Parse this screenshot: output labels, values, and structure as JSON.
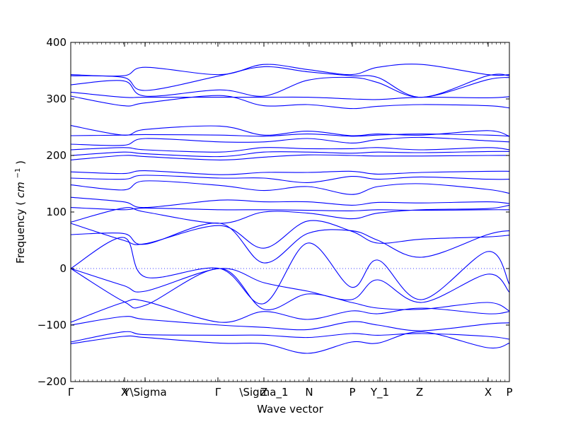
{
  "chart_data": {
    "type": "line",
    "title": "",
    "xlabel": "Wave vector",
    "ylabel": "Frequency",
    "ylabel_unit": "cm",
    "ylabel_unit_exp": "−1",
    "ylim": [
      -200,
      400
    ],
    "yticks": [
      -200,
      -100,
      0,
      100,
      200,
      300,
      400
    ],
    "ytick_labels": [
      "−200",
      "−100",
      "0",
      "100",
      "200",
      "300",
      "400"
    ],
    "xlim": [
      0,
      1
    ],
    "high_symmetry_points": [
      {
        "label": "Γ",
        "x": 0.0
      },
      {
        "label": "X",
        "x": 0.1226
      },
      {
        "label": "Y\\Sigma",
        "x": 0.1694
      },
      {
        "label": "Γ",
        "x": 0.3355
      },
      {
        "label": "Z",
        "x": 0.4403
      },
      {
        "label": "\\Sigma_1",
        "x": 0.4403
      },
      {
        "label": "N",
        "x": 0.5435
      },
      {
        "label": "P",
        "x": 0.6419
      },
      {
        "label": "Y_1",
        "x": 0.7048
      },
      {
        "label": "Z",
        "x": 0.7952
      },
      {
        "label": "X",
        "x": 0.9516
      },
      {
        "label": "P",
        "x": 1.0
      }
    ],
    "zero_line": {
      "y": 0,
      "style": "dotted"
    },
    "line_color": "#0000ff",
    "series": [
      {
        "x": [
          0,
          0.12,
          0.17,
          0.34,
          0.44,
          0.54,
          0.64,
          0.7,
          0.8,
          0.95,
          1.0
        ],
        "values": [
          343,
          341,
          356,
          343,
          361,
          352,
          343,
          356,
          361,
          343,
          343
        ]
      },
      {
        "x": [
          0,
          0.12,
          0.17,
          0.34,
          0.44,
          0.54,
          0.64,
          0.7,
          0.8,
          0.95,
          1.0
        ],
        "values": [
          341,
          338,
          315,
          341,
          357,
          348,
          341,
          338,
          303,
          341,
          341
        ]
      },
      {
        "x": [
          0,
          0.12,
          0.17,
          0.34,
          0.44,
          0.54,
          0.64,
          0.7,
          0.8,
          0.95,
          1.0
        ],
        "values": [
          325,
          332,
          305,
          316,
          305,
          333,
          338,
          329,
          303,
          334,
          338
        ]
      },
      {
        "x": [
          0,
          0.12,
          0.17,
          0.34,
          0.44,
          0.54,
          0.64,
          0.7,
          0.8,
          0.95,
          1.0
        ],
        "values": [
          312,
          303,
          303,
          303,
          303,
          303,
          300,
          299,
          303,
          302,
          304
        ]
      },
      {
        "x": [
          0,
          0.12,
          0.17,
          0.34,
          0.44,
          0.54,
          0.64,
          0.7,
          0.8,
          0.95,
          1.0
        ],
        "values": [
          305,
          288,
          293,
          306,
          288,
          290,
          283,
          287,
          290,
          288,
          284
        ]
      },
      {
        "x": [
          0,
          0.12,
          0.17,
          0.34,
          0.44,
          0.54,
          0.64,
          0.7,
          0.8,
          0.95,
          1.0
        ],
        "values": [
          253,
          236,
          246,
          252,
          236,
          243,
          235,
          238,
          236,
          244,
          234
        ]
      },
      {
        "x": [
          0,
          0.12,
          0.17,
          0.34,
          0.44,
          0.54,
          0.64,
          0.7,
          0.8,
          0.95,
          1.0
        ],
        "values": [
          235,
          236,
          237,
          236,
          234,
          238,
          234,
          236,
          238,
          236,
          234
        ]
      },
      {
        "x": [
          0,
          0.12,
          0.17,
          0.34,
          0.44,
          0.54,
          0.64,
          0.7,
          0.8,
          0.95,
          1.0
        ],
        "values": [
          220,
          218,
          230,
          224,
          224,
          230,
          222,
          228,
          232,
          226,
          224
        ]
      },
      {
        "x": [
          0,
          0.12,
          0.17,
          0.34,
          0.44,
          0.54,
          0.64,
          0.7,
          0.8,
          0.95,
          1.0
        ],
        "values": [
          210,
          214,
          210,
          206,
          214,
          212,
          212,
          214,
          210,
          214,
          210
        ]
      },
      {
        "x": [
          0,
          0.12,
          0.17,
          0.34,
          0.44,
          0.54,
          0.64,
          0.7,
          0.8,
          0.95,
          1.0
        ],
        "values": [
          200,
          206,
          203,
          198,
          206,
          206,
          204,
          206,
          205,
          207,
          207
        ]
      },
      {
        "x": [
          0,
          0.12,
          0.17,
          0.34,
          0.44,
          0.54,
          0.64,
          0.7,
          0.8,
          0.95,
          1.0
        ],
        "values": [
          192,
          200,
          198,
          192,
          197,
          201,
          200,
          199,
          199,
          200,
          200
        ]
      },
      {
        "x": [
          0,
          0.12,
          0.17,
          0.34,
          0.44,
          0.54,
          0.64,
          0.7,
          0.8,
          0.95,
          1.0
        ],
        "values": [
          171,
          168,
          173,
          166,
          170,
          170,
          172,
          167,
          170,
          172,
          172
        ]
      },
      {
        "x": [
          0,
          0.12,
          0.17,
          0.34,
          0.44,
          0.54,
          0.64,
          0.7,
          0.8,
          0.95,
          1.0
        ],
        "values": [
          160,
          158,
          165,
          160,
          160,
          152,
          163,
          158,
          162,
          158,
          158
        ]
      },
      {
        "x": [
          0,
          0.12,
          0.17,
          0.34,
          0.44,
          0.54,
          0.64,
          0.7,
          0.8,
          0.95,
          1.0
        ],
        "values": [
          148,
          139,
          155,
          147,
          138,
          145,
          131,
          145,
          150,
          140,
          133
        ]
      },
      {
        "x": [
          0,
          0.12,
          0.17,
          0.34,
          0.44,
          0.54,
          0.64,
          0.7,
          0.8,
          0.95,
          1.0
        ],
        "values": [
          126,
          118,
          108,
          121,
          118,
          118,
          112,
          117,
          116,
          118,
          115
        ]
      },
      {
        "x": [
          0,
          0.12,
          0.17,
          0.34,
          0.44,
          0.54,
          0.64,
          0.7,
          0.8,
          0.95,
          1.0
        ],
        "values": [
          108,
          104,
          107,
          104,
          104,
          103,
          102,
          104,
          103,
          104,
          104
        ]
      },
      {
        "x": [
          0,
          0.12,
          0.17,
          0.34,
          0.44,
          0.54,
          0.64,
          0.7,
          0.8,
          0.95,
          1.0
        ],
        "values": [
          82,
          107,
          100,
          80,
          100,
          98,
          88,
          98,
          104,
          106,
          112
        ]
      },
      {
        "x": [
          0,
          0.12,
          0.17,
          0.34,
          0.44,
          0.54,
          0.64,
          0.7,
          0.8,
          0.95,
          1.0
        ],
        "values": [
          80,
          50,
          44,
          76,
          36,
          84,
          66,
          45,
          52,
          56,
          59
        ]
      },
      {
        "x": [
          0,
          0.12,
          0.17,
          0.34,
          0.44,
          0.54,
          0.64,
          0.7,
          0.8,
          0.95,
          1.0
        ],
        "values": [
          60,
          62,
          43,
          80,
          10,
          62,
          67,
          50,
          20,
          60,
          67
        ]
      },
      {
        "x": [
          0,
          0.12,
          0.17,
          0.34,
          0.44,
          0.54,
          0.64,
          0.7,
          0.8,
          0.95,
          1.0
        ],
        "values": [
          0,
          55,
          -15,
          0,
          -62,
          45,
          -33,
          15,
          -55,
          30,
          -28
        ]
      },
      {
        "x": [
          0,
          0.12,
          0.17,
          0.34,
          0.44,
          0.54,
          0.64,
          0.7,
          0.8,
          0.95,
          1.0
        ],
        "values": [
          0,
          -30,
          -40,
          0,
          -25,
          -40,
          -55,
          -20,
          -60,
          -10,
          -42
        ]
      },
      {
        "x": [
          0,
          0.12,
          0.17,
          0.34,
          0.44,
          0.54,
          0.64,
          0.7,
          0.8,
          0.95,
          1.0
        ],
        "values": [
          0,
          -58,
          -65,
          0,
          -72,
          -45,
          -60,
          -70,
          -72,
          -60,
          -75
        ]
      },
      {
        "x": [
          0,
          0.12,
          0.17,
          0.34,
          0.44,
          0.54,
          0.64,
          0.7,
          0.8,
          0.95,
          1.0
        ],
        "values": [
          -95,
          -60,
          -58,
          -95,
          -76,
          -90,
          -75,
          -80,
          -70,
          -80,
          -76
        ]
      },
      {
        "x": [
          0,
          0.12,
          0.17,
          0.34,
          0.44,
          0.54,
          0.64,
          0.7,
          0.8,
          0.95,
          1.0
        ],
        "values": [
          -100,
          -85,
          -90,
          -100,
          -104,
          -108,
          -94,
          -100,
          -110,
          -98,
          -96
        ]
      },
      {
        "x": [
          0,
          0.12,
          0.17,
          0.34,
          0.44,
          0.54,
          0.64,
          0.7,
          0.8,
          0.95,
          1.0
        ],
        "values": [
          -130,
          -112,
          -117,
          -118,
          -118,
          -122,
          -115,
          -118,
          -115,
          -120,
          -125
        ]
      },
      {
        "x": [
          0,
          0.12,
          0.17,
          0.34,
          0.44,
          0.54,
          0.64,
          0.7,
          0.8,
          0.95,
          1.0
        ],
        "values": [
          -133,
          -120,
          -122,
          -132,
          -133,
          -150,
          -130,
          -132,
          -112,
          -140,
          -132
        ]
      }
    ]
  }
}
